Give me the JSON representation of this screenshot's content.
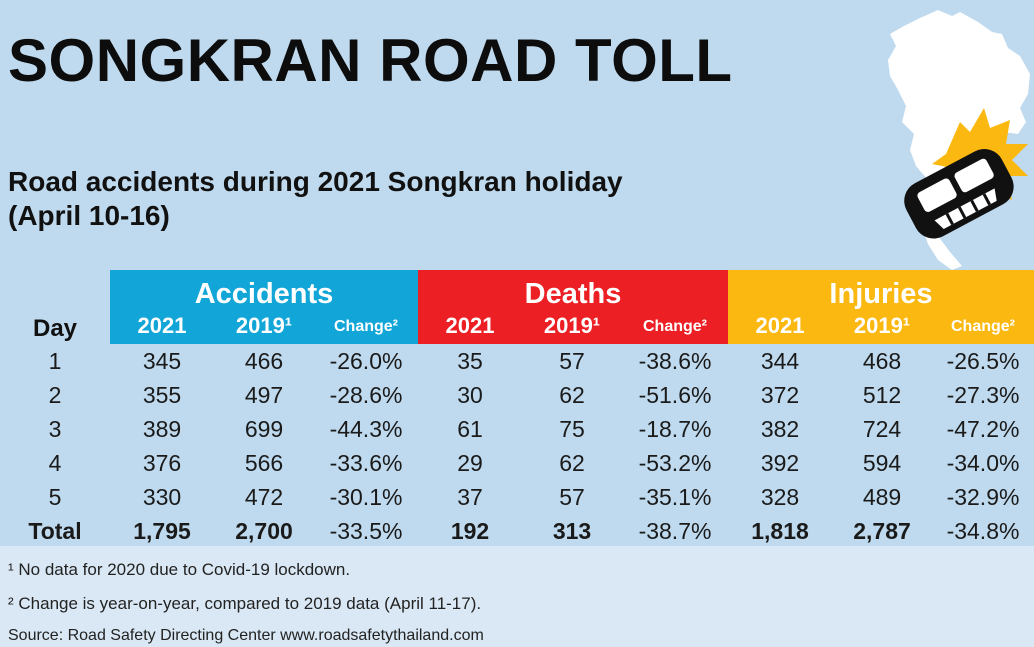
{
  "title": "SONGKRAN ROAD TOLL",
  "subtitle_line1": "Road accidents during 2021 Songkran holiday",
  "subtitle_line2": "(April 10-16)",
  "map_icon": "thailand-map-with-crashed-car-icon",
  "colors": {
    "accidents": "#12a6d8",
    "deaths": "#ec2024",
    "injuries": "#fbb810"
  },
  "table": {
    "day_header": "Day",
    "groups": [
      {
        "label": "Accidents",
        "y1": "2021",
        "y2": "2019¹",
        "change": "Change²"
      },
      {
        "label": "Deaths",
        "y1": "2021",
        "y2": "2019¹",
        "change": "Change²"
      },
      {
        "label": "Injuries",
        "y1": "2021",
        "y2": "2019¹",
        "change": "Change²"
      }
    ],
    "rows": [
      [
        "1",
        "345",
        "466",
        "-26.0%",
        "35",
        "57",
        "-38.6%",
        "344",
        "468",
        "-26.5%"
      ],
      [
        "2",
        "355",
        "497",
        "-28.6%",
        "30",
        "62",
        "-51.6%",
        "372",
        "512",
        "-27.3%"
      ],
      [
        "3",
        "389",
        "699",
        "-44.3%",
        "61",
        "75",
        "-18.7%",
        "382",
        "724",
        "-47.2%"
      ],
      [
        "4",
        "376",
        "566",
        "-33.6%",
        "29",
        "62",
        "-53.2%",
        "392",
        "594",
        "-34.0%"
      ],
      [
        "5",
        "330",
        "472",
        "-30.1%",
        "37",
        "57",
        "-35.1%",
        "328",
        "489",
        "-32.9%"
      ],
      [
        "Total",
        "1,795",
        "2,700",
        "-33.5%",
        "192",
        "313",
        "-38.7%",
        "1,818",
        "2,787",
        "-34.8%"
      ]
    ]
  },
  "footnotes": [
    "¹ No data for 2020 due to Covid-19 lockdown.",
    "² Change is year-on-year, compared to 2019 data (April 11-17).",
    "Source: Road Safety Directing Center www.roadsafetythailand.com"
  ]
}
